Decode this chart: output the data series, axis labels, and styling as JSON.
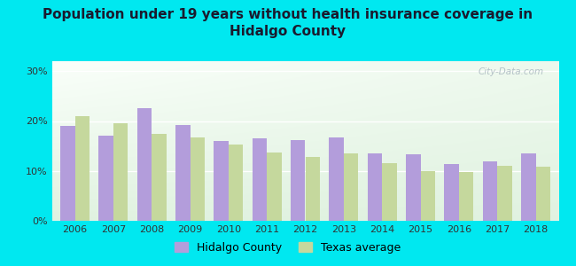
{
  "title": "Population under 19 years without health insurance coverage in\nHidalgo County",
  "years": [
    2006,
    2007,
    2008,
    2009,
    2010,
    2011,
    2012,
    2013,
    2014,
    2015,
    2016,
    2017,
    2018
  ],
  "hidalgo": [
    19.0,
    17.0,
    22.5,
    19.2,
    16.0,
    16.5,
    16.2,
    16.7,
    13.5,
    13.3,
    11.3,
    12.0,
    13.5
  ],
  "texas": [
    21.0,
    19.5,
    17.5,
    16.7,
    15.3,
    13.7,
    12.8,
    13.5,
    11.5,
    10.0,
    9.7,
    11.0,
    10.8
  ],
  "hidalgo_color": "#b39ddb",
  "texas_color": "#c5d89d",
  "bg_outer": "#00e8f0",
  "ylabel_ticks": [
    "0%",
    "10%",
    "20%",
    "30%"
  ],
  "yticks": [
    0,
    10,
    20,
    30
  ],
  "ylim": [
    0,
    32
  ],
  "watermark": "City-Data.com",
  "legend_hidalgo": "Hidalgo County",
  "legend_texas": "Texas average",
  "title_fontsize": 11,
  "tick_fontsize": 8,
  "legend_fontsize": 9
}
